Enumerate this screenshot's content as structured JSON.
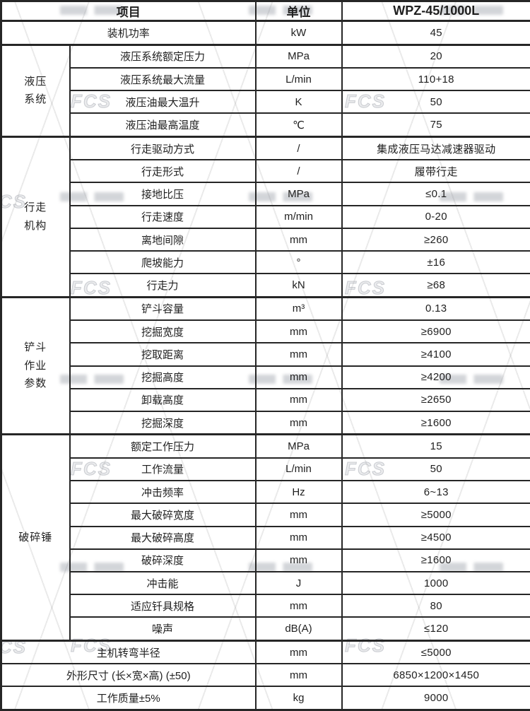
{
  "table": {
    "headers": {
      "item": "项目",
      "unit": "单位",
      "model": "WPZ-45/1000L"
    },
    "sections": [
      {
        "group": null,
        "rows": [
          {
            "item": "装机功率",
            "unit": "kW",
            "value": "45"
          }
        ]
      },
      {
        "group": "液压\n系统",
        "rows": [
          {
            "item": "液压系统额定压力",
            "unit": "MPa",
            "value": "20"
          },
          {
            "item": "液压系统最大流量",
            "unit": "L/min",
            "value": "110+18"
          },
          {
            "item": "液压油最大温升",
            "unit": "K",
            "value": "50"
          },
          {
            "item": "液压油最高温度",
            "unit": "℃",
            "value": "75"
          }
        ]
      },
      {
        "group": "行走\n机构",
        "rows": [
          {
            "item": "行走驱动方式",
            "unit": "/",
            "value": "集成液压马达减速器驱动"
          },
          {
            "item": "行走形式",
            "unit": "/",
            "value": "履带行走"
          },
          {
            "item": "接地比压",
            "unit": "MPa",
            "value": "≤0.1"
          },
          {
            "item": "行走速度",
            "unit": "m/min",
            "value": "0-20"
          },
          {
            "item": "离地间隙",
            "unit": "mm",
            "value": "≥260"
          },
          {
            "item": "爬坡能力",
            "unit": "°",
            "value": "±16"
          },
          {
            "item": "行走力",
            "unit": "kN",
            "value": "≥68"
          }
        ]
      },
      {
        "group": "铲斗\n作业\n参数",
        "rows": [
          {
            "item": "铲斗容量",
            "unit": "m³",
            "value": "0.13"
          },
          {
            "item": "挖掘宽度",
            "unit": "mm",
            "value": "≥6900"
          },
          {
            "item": "挖取距离",
            "unit": "mm",
            "value": "≥4100"
          },
          {
            "item": "挖掘高度",
            "unit": "mm",
            "value": "≥4200"
          },
          {
            "item": "卸载高度",
            "unit": "mm",
            "value": "≥2650"
          },
          {
            "item": "挖掘深度",
            "unit": "mm",
            "value": "≥1600"
          }
        ]
      },
      {
        "group": "破碎锤",
        "rows": [
          {
            "item": "额定工作压力",
            "unit": "MPa",
            "value": "15"
          },
          {
            "item": "工作流量",
            "unit": "L/min",
            "value": "50"
          },
          {
            "item": "冲击频率",
            "unit": "Hz",
            "value": "6~13"
          },
          {
            "item": "最大破碎宽度",
            "unit": "mm",
            "value": "≥5000"
          },
          {
            "item": "最大破碎高度",
            "unit": "mm",
            "value": "≥4500"
          },
          {
            "item": "破碎深度",
            "unit": "mm",
            "value": "≥1600"
          },
          {
            "item": "冲击能",
            "unit": "J",
            "value": "1000"
          },
          {
            "item": "适应钎具规格",
            "unit": "mm",
            "value": "80"
          },
          {
            "item": "噪声",
            "unit": "dB(A)",
            "value": "≤120"
          }
        ]
      },
      {
        "group": null,
        "rows": [
          {
            "item": "主机转弯半径",
            "unit": "mm",
            "value": "≤5000"
          },
          {
            "item": "外形尺寸 (长×宽×高) (±50)",
            "unit": "mm",
            "value": "6850×1200×1450"
          },
          {
            "item": "工作质量±5%",
            "unit": "kg",
            "value": "9000"
          }
        ]
      }
    ]
  },
  "watermark": {
    "logo_text": "FCS"
  }
}
